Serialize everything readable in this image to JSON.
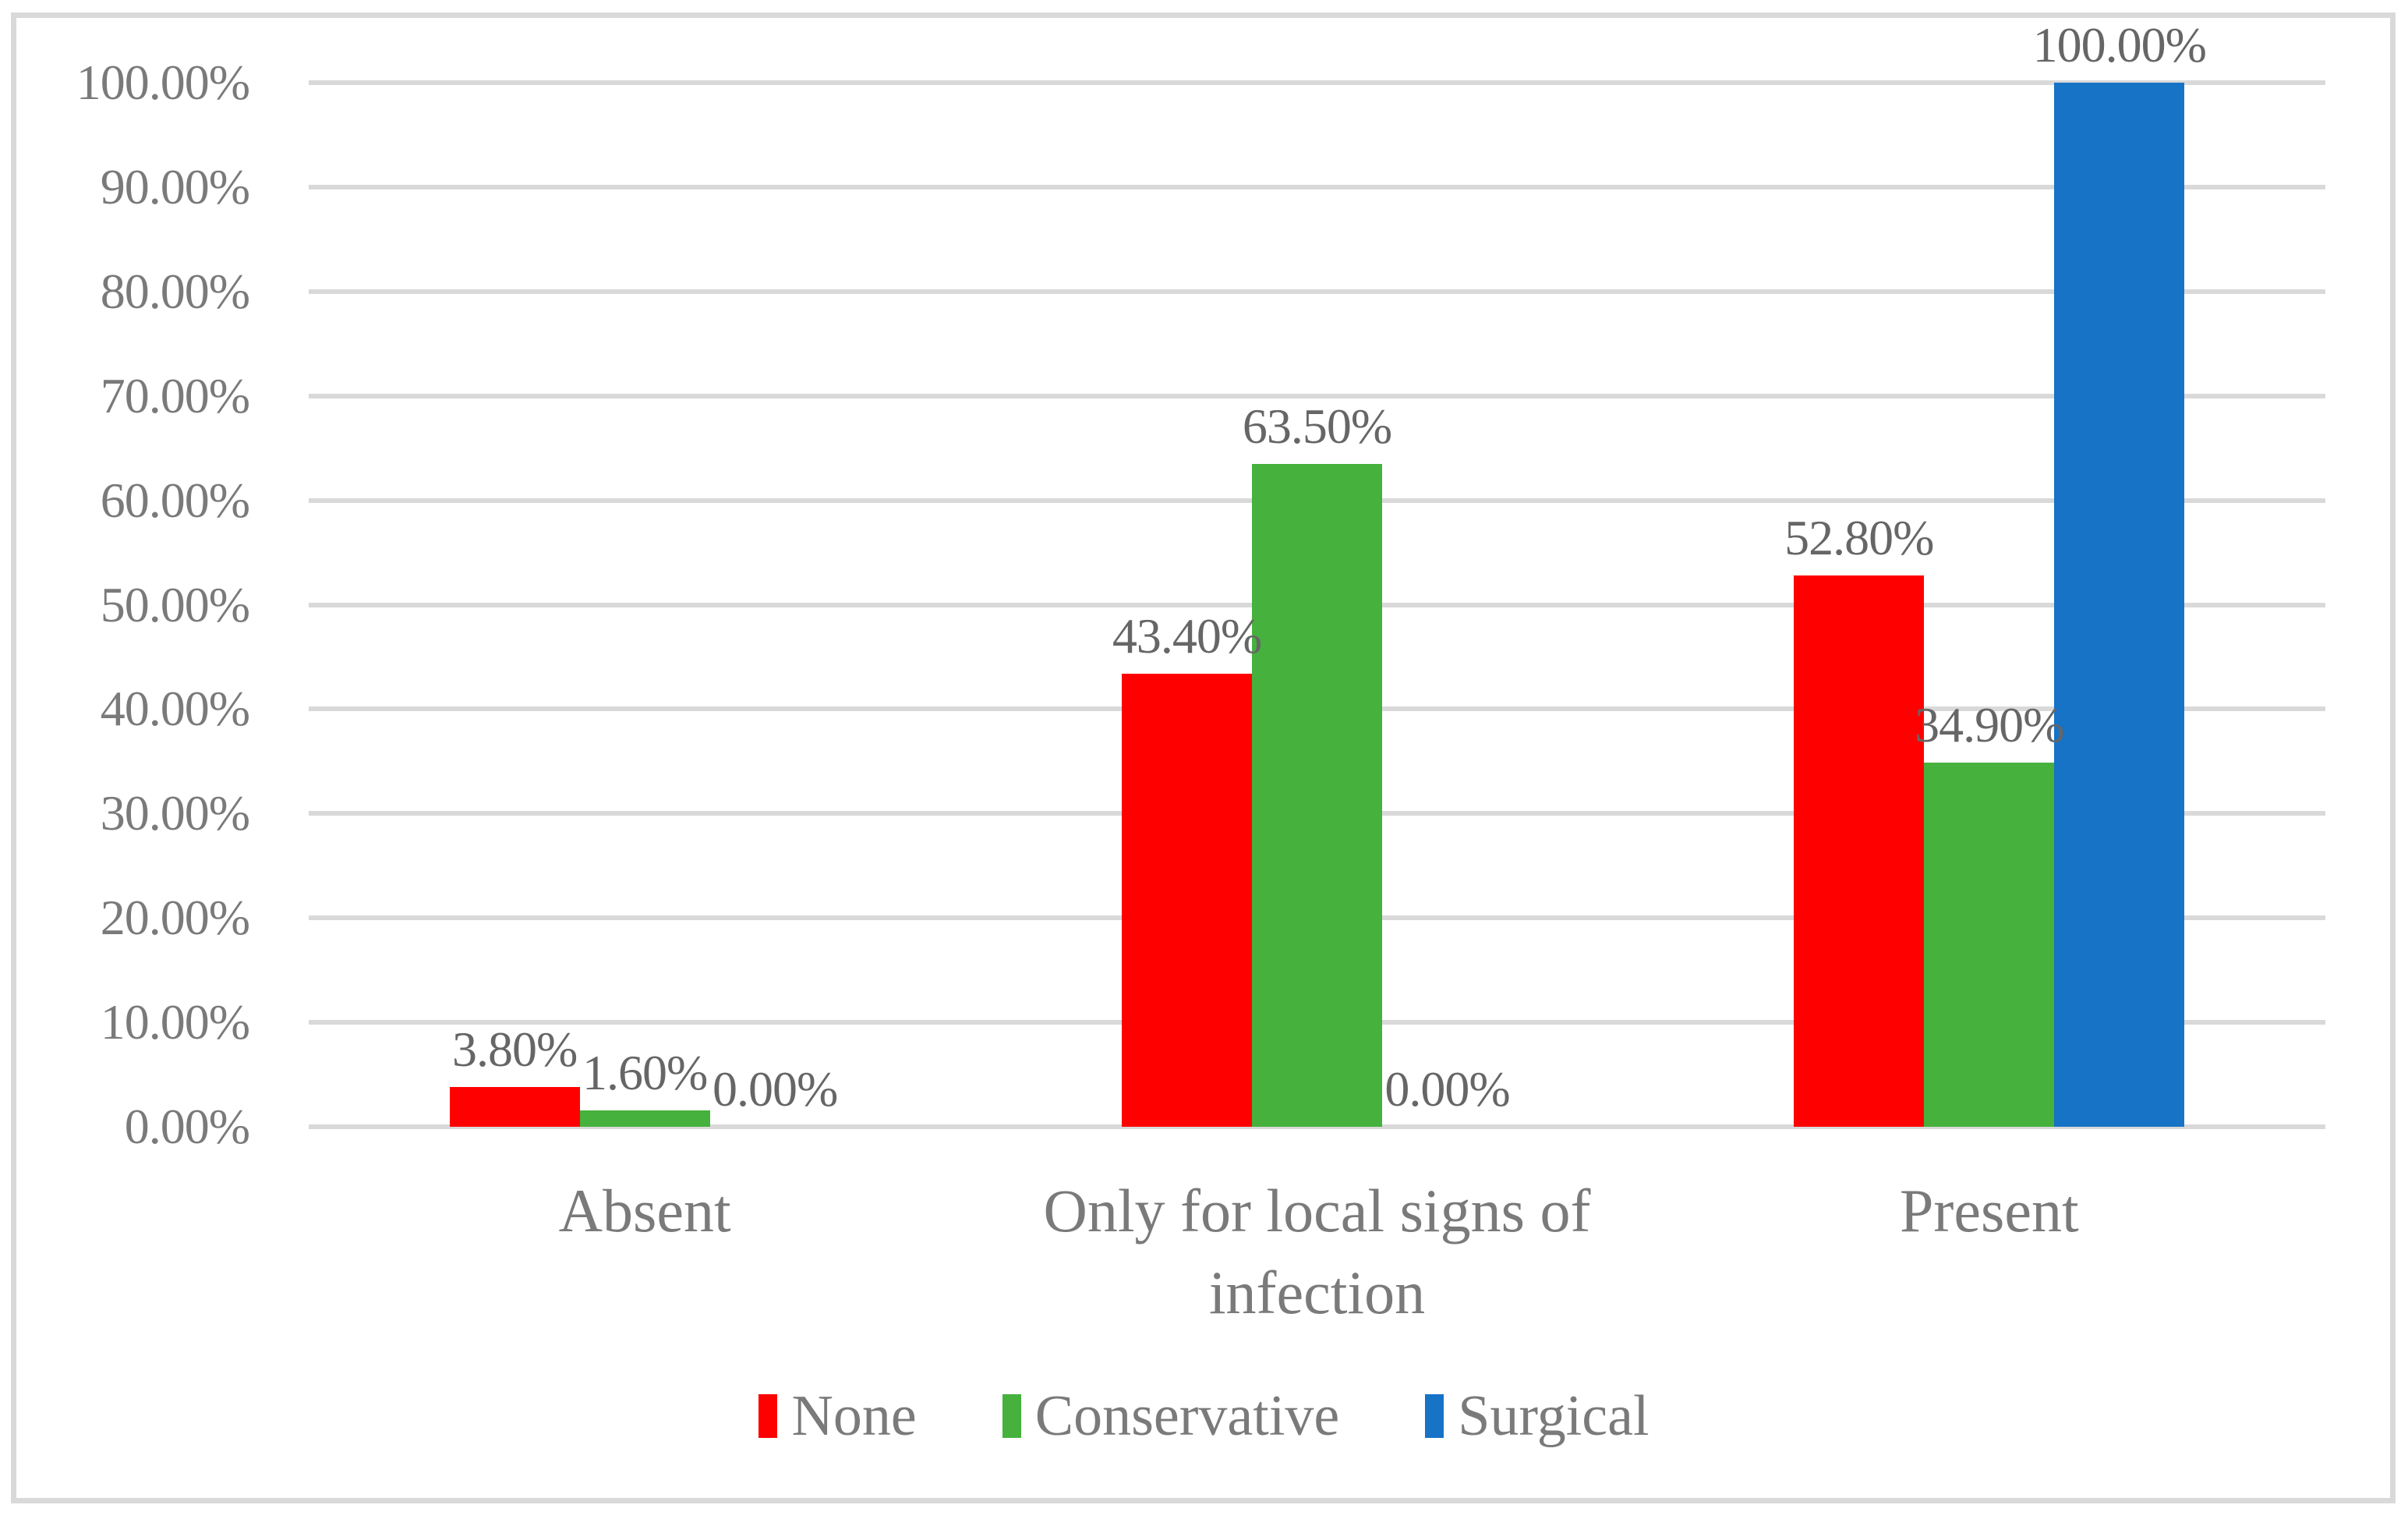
{
  "chart_data": {
    "type": "bar",
    "title": "",
    "xlabel": "",
    "ylabel": "",
    "categories": [
      "Absent",
      "Only for local signs of infection",
      "Present"
    ],
    "series": [
      {
        "name": "None",
        "color": "#FF0000",
        "values": [
          3.8,
          43.4,
          52.8
        ],
        "labels": [
          "3.80%",
          "43.40%",
          "52.80%"
        ]
      },
      {
        "name": "Conservative",
        "color": "#46B13C",
        "values": [
          1.6,
          63.5,
          34.9
        ],
        "labels": [
          "1.60%",
          "63.50%",
          "34.90%"
        ]
      },
      {
        "name": "Surgical",
        "color": "#1673C6",
        "values": [
          0.0,
          0.0,
          100.0
        ],
        "labels": [
          "0.00%",
          "0.00%",
          "100.00%"
        ]
      }
    ],
    "y_axis": {
      "min": 0,
      "max": 100,
      "step": 10,
      "tick_labels": [
        "0.00%",
        "10.00%",
        "20.00%",
        "30.00%",
        "40.00%",
        "50.00%",
        "60.00%",
        "70.00%",
        "80.00%",
        "90.00%",
        "100.00%"
      ]
    },
    "legend": {
      "position": "bottom",
      "items": [
        "None",
        "Conservative",
        "Surgical"
      ]
    },
    "grid": true
  },
  "colors": {
    "background": "#FFFFFF",
    "frame": "#D9D9D9",
    "gridline": "#D9D9D9",
    "axis_text": "#7A7A7A",
    "data_label_text": "#666666",
    "legend_text": "#7A7A7A"
  }
}
